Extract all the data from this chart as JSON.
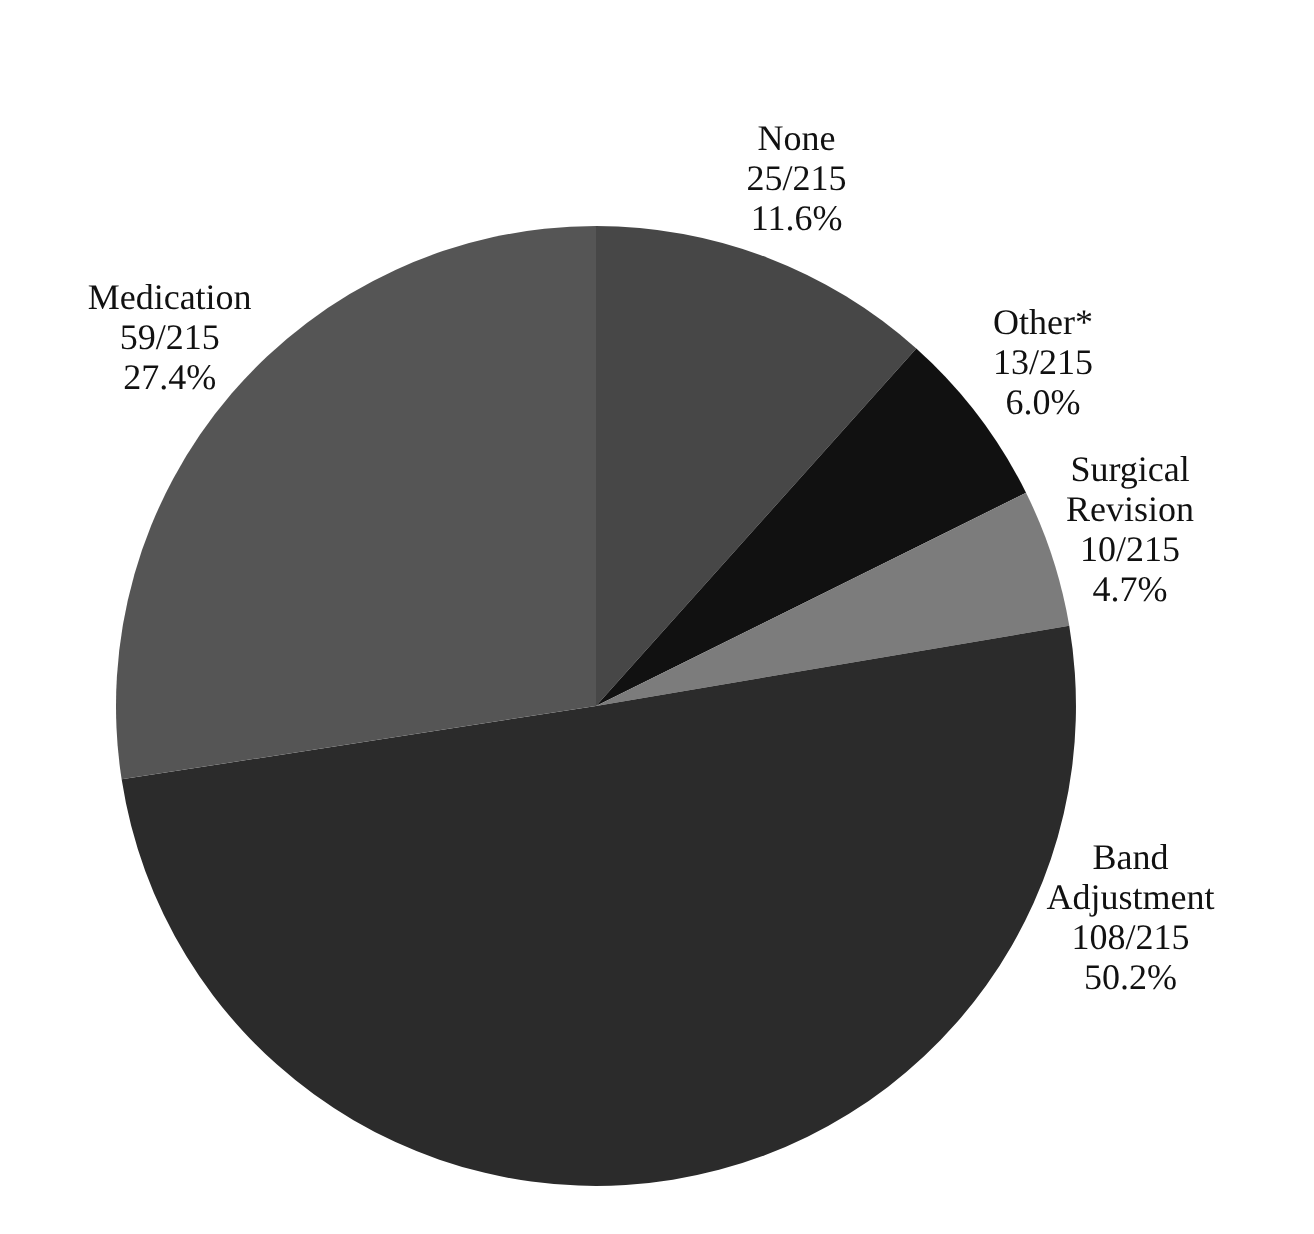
{
  "chart_data": {
    "type": "pie",
    "categories": [
      "None",
      "Other*",
      "Surgical Revision",
      "Band Adjustment",
      "Medication"
    ],
    "values": [
      25,
      13,
      10,
      108,
      59
    ],
    "colors": [
      "#474747",
      "#111111",
      "#7c7c7c",
      "#2b2b2b",
      "#555555"
    ],
    "value_labels": [
      "25/215\n11.6%",
      "13/215\n6.0%",
      "10/215\n4.7%",
      "108/215\n50.2%",
      "59/215\n27.4%"
    ]
  }
}
